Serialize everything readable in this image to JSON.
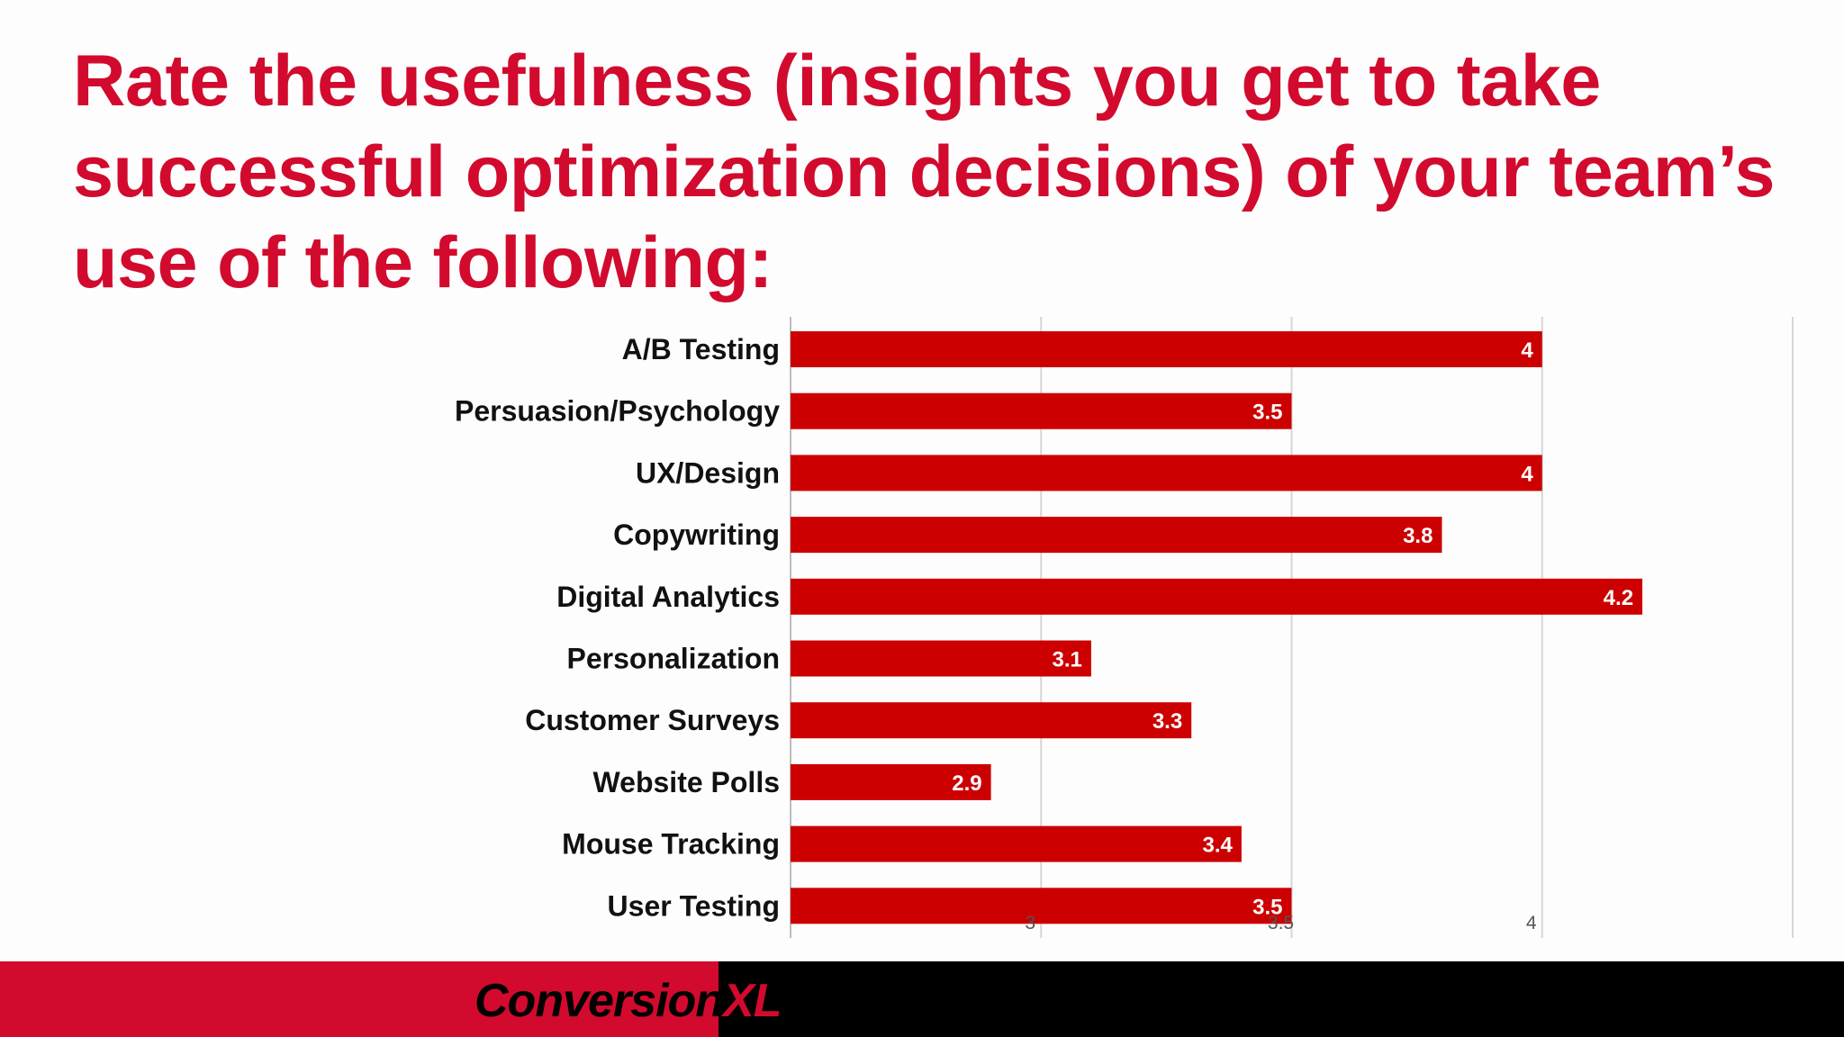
{
  "slide": {
    "title": "Rate the usefulness (insights you get to take successful optimization decisions) of your team’s use of the following:"
  },
  "brand": {
    "logo_part1": "Conversion",
    "logo_part2": "XL",
    "accent_color": "#d20a2e",
    "bar_color": "#cc0000",
    "dark_color": "#000000"
  },
  "chart_data": {
    "type": "bar",
    "orientation": "horizontal",
    "categories": [
      "A/B Testing",
      "Persuasion/Psychology",
      "UX/Design",
      "Copywriting",
      "Digital Analytics",
      "Personalization",
      "Customer Surveys",
      "Website Polls",
      "Mouse Tracking",
      "User Testing"
    ],
    "values": [
      4,
      3.5,
      4,
      3.8,
      4.2,
      3.1,
      3.3,
      2.9,
      3.4,
      3.5
    ],
    "value_labels": [
      "4",
      "3.5",
      "4",
      "3.8",
      "4.2",
      "3.1",
      "3.3",
      "2.9",
      "3.4",
      "3.5"
    ],
    "xlim": [
      2.5,
      4.5
    ],
    "x_ticks": [
      3,
      3.5,
      4
    ],
    "x_tick_labels": [
      "3",
      "3.5",
      "4"
    ],
    "gridlines": [
      3,
      3.5,
      4,
      4.5
    ],
    "grid": true,
    "legend": "none"
  }
}
